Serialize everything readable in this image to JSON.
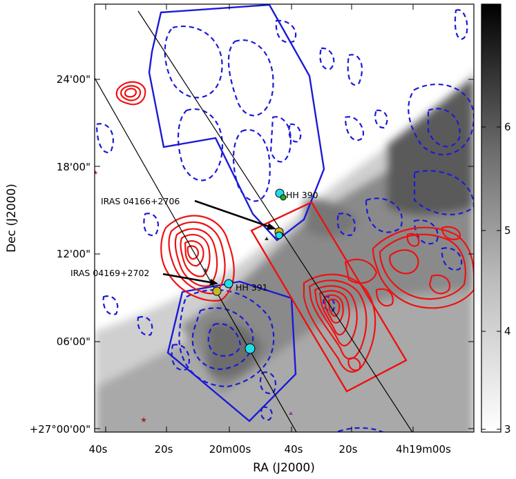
{
  "chart_data": {
    "type": "heatmap",
    "title": "",
    "xlabel": "RA (J2000)",
    "ylabel": "Dec (J2000)",
    "x_ticks": [
      "40s",
      "20s",
      "20m00s",
      "40s",
      "20s",
      "4h19m00s"
    ],
    "y_ticks": [
      "+27°00'00\"",
      "06'00\"",
      "12'00\"",
      "18'00\"",
      "24'00\""
    ],
    "colorbar": {
      "ticks": [
        "3",
        "4",
        "5",
        "6"
      ],
      "range": [
        2.85,
        7.1
      ],
      "colormap": "gray_r"
    },
    "annotations": [
      {
        "id": "iras1",
        "text": "IRAS 04166+2706"
      },
      {
        "id": "iras2",
        "text": "IRAS 04169+2702"
      },
      {
        "id": "hh390",
        "text": "HH 390"
      },
      {
        "id": "hh391",
        "text": "HH 391"
      }
    ],
    "overlays": {
      "red_contours": "solid",
      "blue_contours": "dashed",
      "red_box": "outflow region (red)",
      "blue_polygons": 2,
      "cut_lines": 2
    },
    "colors": {
      "red": "#ee1111",
      "blue": "#1a1ad8",
      "cyan": "#22dde8",
      "olive": "#c8b820",
      "green": "#22aa22"
    },
    "grid": false
  }
}
